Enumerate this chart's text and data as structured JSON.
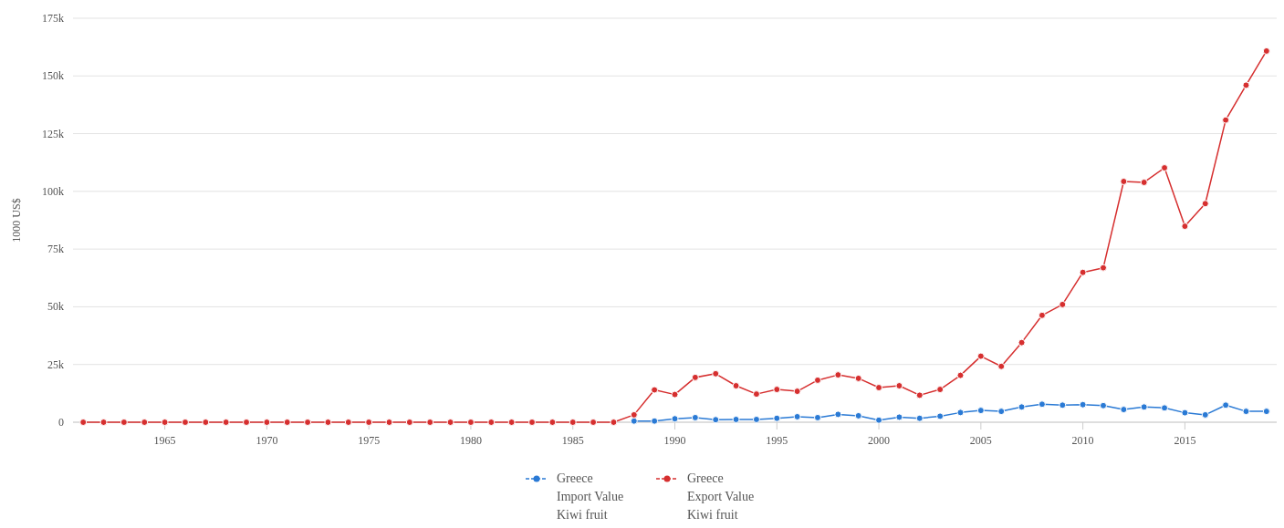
{
  "chart_data": {
    "type": "line",
    "ylabel": "1000 US$",
    "x": [
      1961,
      1962,
      1963,
      1964,
      1965,
      1966,
      1967,
      1968,
      1969,
      1970,
      1971,
      1972,
      1973,
      1974,
      1975,
      1976,
      1977,
      1978,
      1979,
      1980,
      1981,
      1982,
      1983,
      1984,
      1985,
      1986,
      1987,
      1988,
      1989,
      1990,
      1991,
      1992,
      1993,
      1994,
      1995,
      1996,
      1997,
      1998,
      1999,
      2000,
      2001,
      2002,
      2003,
      2004,
      2005,
      2006,
      2007,
      2008,
      2009,
      2010,
      2011,
      2012,
      2013,
      2014,
      2015,
      2016,
      2017,
      2018,
      2019
    ],
    "series": [
      {
        "name": "Greece\nImport Value\nKiwi fruit",
        "color": "#2a7ad5",
        "values": [
          null,
          null,
          null,
          null,
          null,
          null,
          null,
          null,
          null,
          null,
          null,
          null,
          null,
          null,
          null,
          null,
          null,
          null,
          null,
          null,
          null,
          null,
          null,
          null,
          null,
          null,
          null,
          500,
          500,
          1500,
          2000,
          1100,
          1200,
          1200,
          1700,
          2400,
          2000,
          3400,
          2800,
          900,
          2200,
          1700,
          2600,
          4200,
          5100,
          4700,
          6600,
          7800,
          7400,
          7600,
          7200,
          5500,
          6600,
          6200,
          4100,
          3200,
          7400,
          4700,
          4700
        ]
      },
      {
        "name": "Greece\nExport Value\nKiwi fruit",
        "color": "#d62f2f",
        "values": [
          0,
          0,
          0,
          0,
          0,
          0,
          0,
          0,
          0,
          0,
          0,
          0,
          0,
          0,
          0,
          0,
          0,
          0,
          0,
          0,
          0,
          0,
          0,
          0,
          0,
          0,
          0,
          3200,
          14000,
          12000,
          19400,
          21000,
          15800,
          12200,
          14200,
          13400,
          18200,
          20500,
          19000,
          15000,
          15800,
          11700,
          14200,
          20300,
          28600,
          24200,
          34500,
          46300,
          51000,
          64900,
          66900,
          104300,
          103900,
          110200,
          84900,
          94700,
          130900,
          146000,
          160800
        ]
      }
    ],
    "xlim": [
      1960.5,
      2019.5
    ],
    "xticks": [
      1965,
      1970,
      1975,
      1980,
      1985,
      1990,
      1995,
      2000,
      2005,
      2010,
      2015
    ],
    "ylim": [
      0,
      175000
    ],
    "yticks": [
      {
        "value": 0,
        "label": "0"
      },
      {
        "value": 25000,
        "label": "25k"
      },
      {
        "value": 50000,
        "label": "50k"
      },
      {
        "value": 75000,
        "label": "75k"
      },
      {
        "value": 100000,
        "label": "100k"
      },
      {
        "value": 125000,
        "label": "125k"
      },
      {
        "value": 150000,
        "label": "150k"
      },
      {
        "value": 175000,
        "label": "175k"
      }
    ],
    "grid": "y",
    "legend": "bottom",
    "marker": "circle",
    "line_style": "solid"
  }
}
